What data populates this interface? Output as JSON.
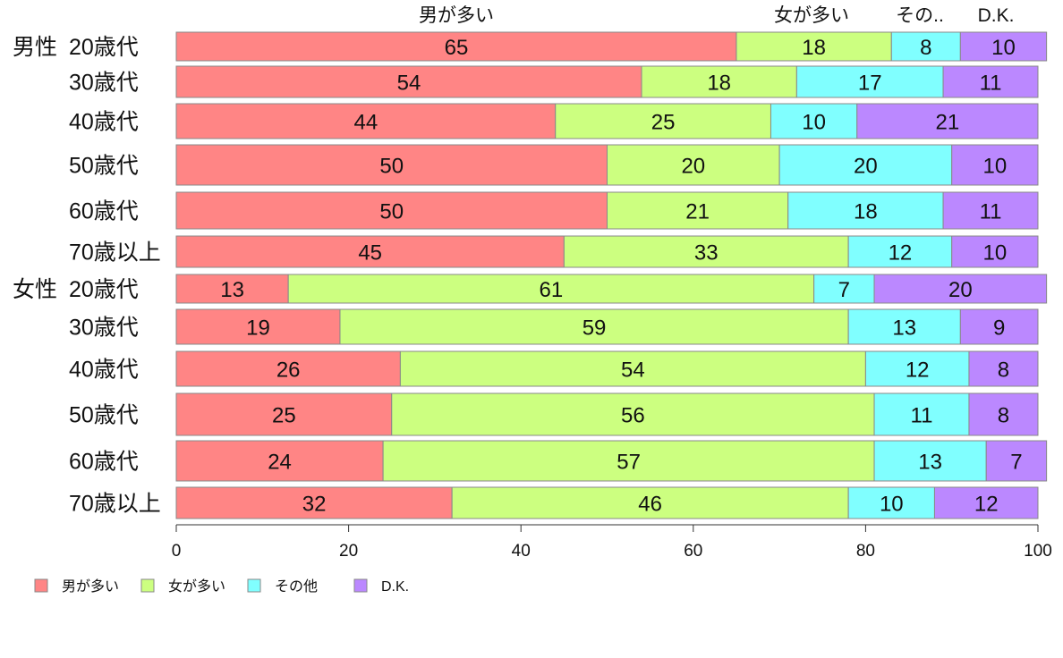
{
  "chart_data": {
    "type": "bar",
    "orientation": "horizontal",
    "stacked": true,
    "xlim": [
      0,
      100
    ],
    "x_ticks": [
      0,
      20,
      40,
      60,
      80,
      100
    ],
    "top_labels": [
      "男が多い",
      "女が多い",
      "その..",
      "D.K."
    ],
    "categories": [
      {
        "group": "男性",
        "label": "20歳代"
      },
      {
        "group": "",
        "label": "30歳代"
      },
      {
        "group": "",
        "label": "40歳代"
      },
      {
        "group": "",
        "label": "50歳代"
      },
      {
        "group": "",
        "label": "60歳代"
      },
      {
        "group": "",
        "label": "70歳以上"
      },
      {
        "group": "女性",
        "label": "20歳代"
      },
      {
        "group": "",
        "label": "30歳代"
      },
      {
        "group": "",
        "label": "40歳代"
      },
      {
        "group": "",
        "label": "50歳代"
      },
      {
        "group": "",
        "label": "60歳代"
      },
      {
        "group": "",
        "label": "70歳以上"
      }
    ],
    "series": [
      {
        "name": "男が多い",
        "color": "#ff8585",
        "values": [
          65,
          54,
          44,
          50,
          50,
          45,
          13,
          19,
          26,
          25,
          24,
          32
        ]
      },
      {
        "name": "女が多い",
        "color": "#ccff80",
        "values": [
          18,
          18,
          25,
          20,
          21,
          33,
          61,
          59,
          54,
          56,
          57,
          46
        ]
      },
      {
        "name": "その他",
        "color": "#80ffff",
        "values": [
          8,
          17,
          10,
          20,
          18,
          12,
          7,
          13,
          12,
          11,
          13,
          10
        ]
      },
      {
        "name": "D.K.",
        "color": "#bb88ff",
        "values": [
          10,
          11,
          21,
          10,
          11,
          10,
          20,
          9,
          8,
          8,
          7,
          12
        ]
      }
    ],
    "legend_position": "bottom-left",
    "grid": false
  }
}
